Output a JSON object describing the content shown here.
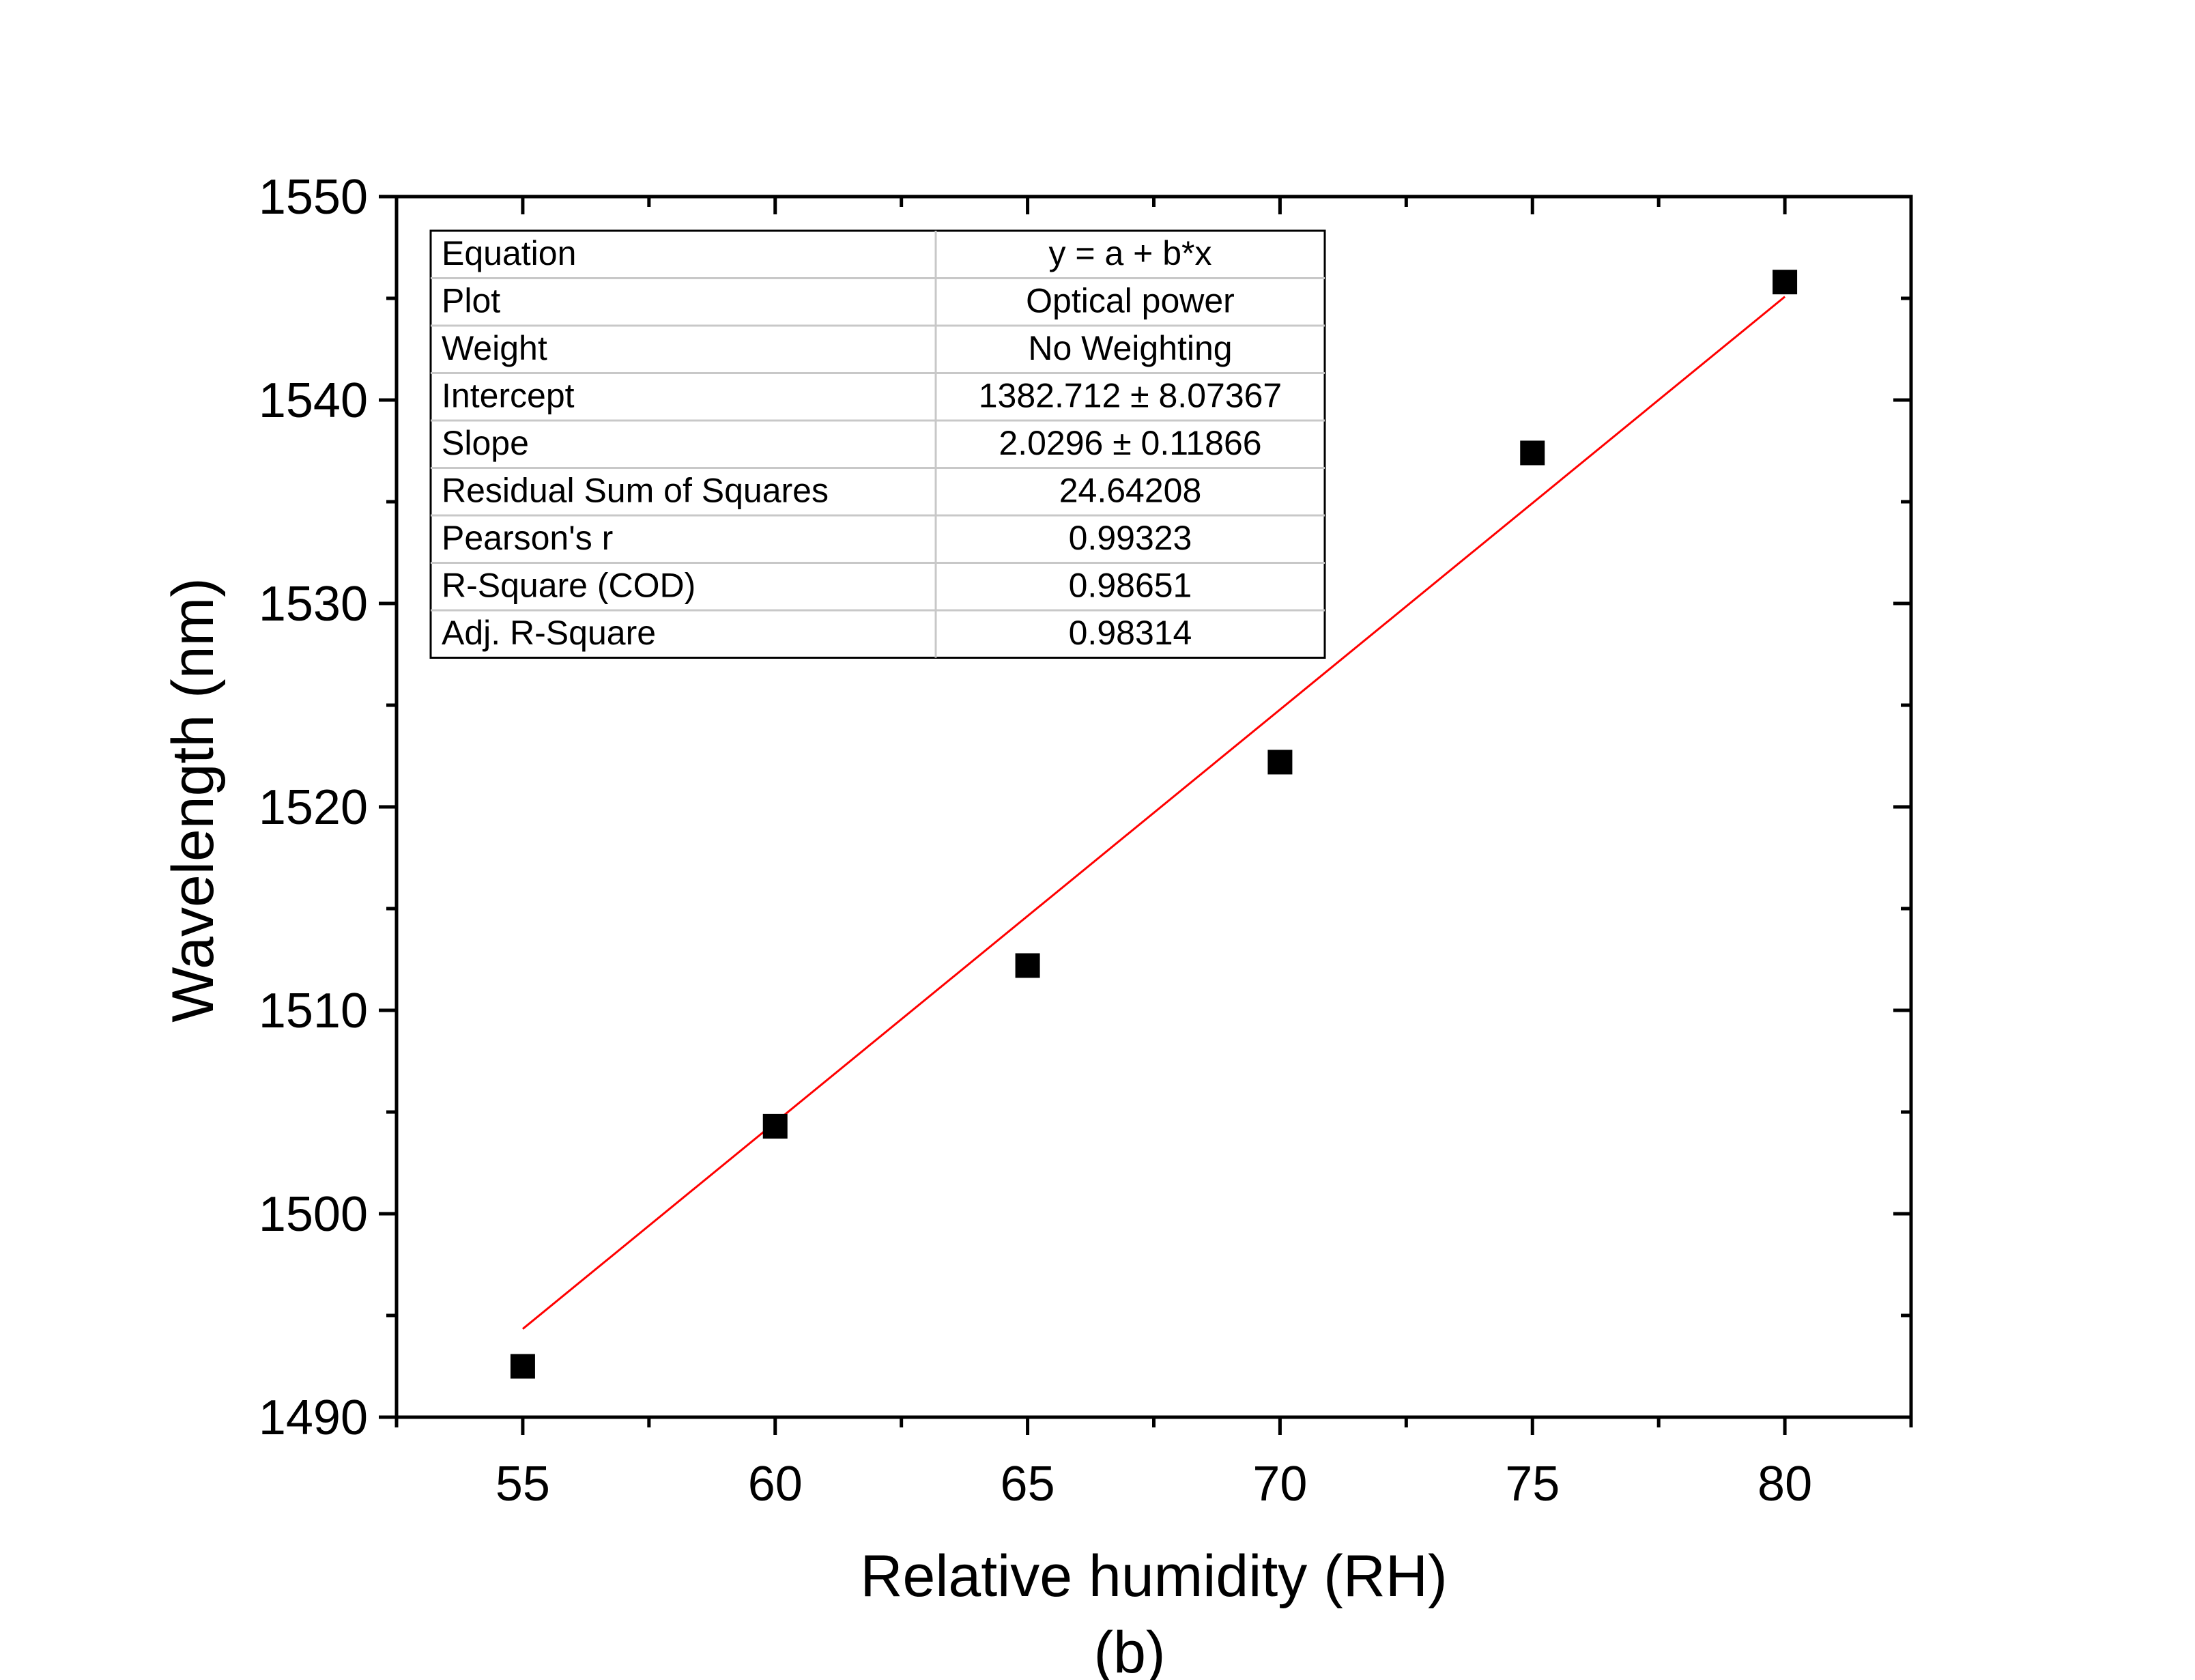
{
  "chart_data": {
    "type": "scatter",
    "xlabel": "Relative humidity (RH)",
    "ylabel": "Wavelength (nm)",
    "caption": "(b)",
    "xlim": [
      52.5,
      82.5
    ],
    "ylim": [
      1490,
      1550
    ],
    "xticks": [
      "55",
      "60",
      "65",
      "70",
      "75",
      "80"
    ],
    "yticks": [
      "1490",
      "1500",
      "1510",
      "1520",
      "1530",
      "1540",
      "1550"
    ],
    "series": [
      {
        "x": [
          55,
          60,
          65,
          70,
          75,
          80
        ],
        "y": [
          1492.5,
          1504.3,
          1512.2,
          1522.2,
          1537.4,
          1545.8
        ],
        "marker": "square",
        "color": "#000000"
      }
    ],
    "fit": {
      "intercept": 1382.712,
      "slope": 2.0296,
      "x_range": [
        55,
        80
      ],
      "color": "#ff0000"
    },
    "stats_table": [
      [
        "Equation",
        "y = a + b*x"
      ],
      [
        "Plot",
        "Optical power"
      ],
      [
        "Weight",
        "No Weighting"
      ],
      [
        "Intercept",
        "1382.712 ± 8.07367"
      ],
      [
        "Slope",
        "2.0296 ± 0.11866"
      ],
      [
        "Residual Sum of Squares",
        "24.64208"
      ],
      [
        "Pearson's r",
        "0.99323"
      ],
      [
        "R-Square (COD)",
        "0.98651"
      ],
      [
        "Adj. R-Square",
        "0.98314"
      ]
    ],
    "grid": false,
    "legend": "none"
  }
}
